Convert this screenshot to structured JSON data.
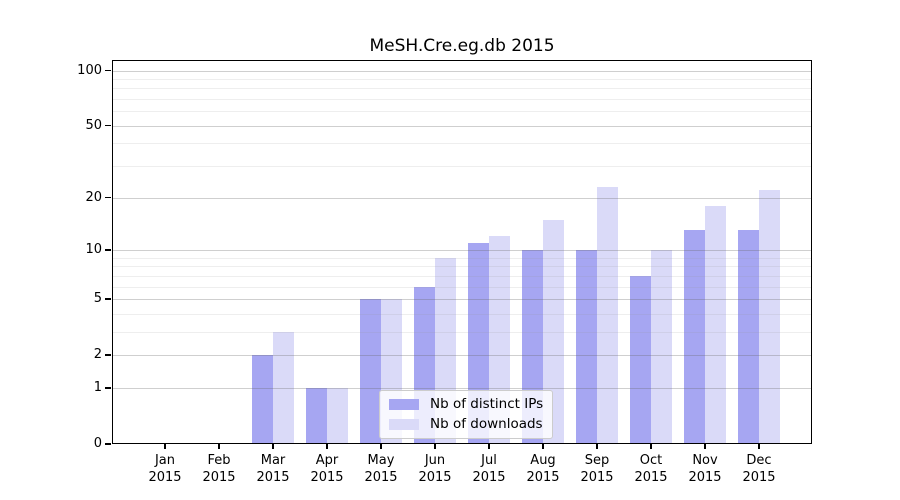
{
  "title": "MeSH.Cre.eg.db 2015",
  "colors": {
    "distinct_ips": "#a6a6f2",
    "downloads": "#dadaf8",
    "grid_major": "rgba(105,105,105,0.32)",
    "grid_minor": "rgba(150,150,150,0.16)",
    "axis": "#000000"
  },
  "legend": {
    "items": [
      {
        "label": "Nb of distinct IPs",
        "color": "#a6a6f2"
      },
      {
        "label": "Nb of downloads",
        "color": "#dadaf8"
      }
    ]
  },
  "chart_data": {
    "type": "bar",
    "title": "MeSH.Cre.eg.db 2015",
    "categories": [
      "Jan 2015",
      "Feb 2015",
      "Mar 2015",
      "Apr 2015",
      "May 2015",
      "Jun 2015",
      "Jul 2015",
      "Aug 2015",
      "Sep 2015",
      "Oct 2015",
      "Nov 2015",
      "Dec 2015"
    ],
    "series": [
      {
        "name": "Nb of distinct IPs",
        "values": [
          0,
          0,
          2,
          1,
          5,
          6,
          11,
          10,
          10,
          7,
          13,
          13
        ]
      },
      {
        "name": "Nb of downloads",
        "values": [
          0,
          0,
          3,
          1,
          5,
          9,
          12,
          15,
          23,
          10,
          18,
          22
        ]
      }
    ],
    "xlabel": "",
    "ylabel": "",
    "yscale": "log1p",
    "yticks": [
      0,
      1,
      2,
      5,
      10,
      20,
      50,
      100
    ],
    "yticks_minor": [
      3,
      4,
      6,
      7,
      8,
      9,
      30,
      40,
      60,
      70,
      80,
      90
    ],
    "ylim": [
      0,
      115
    ],
    "grid": true,
    "legend_position": "lower center"
  }
}
